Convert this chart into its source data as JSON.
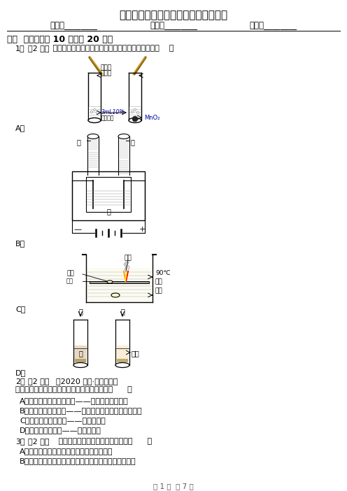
{
  "title": "内蒙古八年级上学期化学期中考试试卷",
  "name_label": "姓名：________",
  "class_label": "班级：________",
  "score_label": "成绩：________",
  "section1": "一、  单选题（共 10 题；共 20 分）",
  "q1_num": "1．",
  "q1_score": "（2 分）",
  "q1_text": " 下列问题的研究中，未利用对比实验思想方法的是（    ）",
  "a_label": "A．",
  "b_label": "B．",
  "c_label": "C．",
  "d_label": "D．",
  "label_daihuo": "带火星",
  "label_mutiao": "的木条",
  "label_3ml": "3mL10%",
  "label_shuangyang": "的双氧水",
  "label_mno2": "MnO₂",
  "label_jia": "甲",
  "label_yi": "乙",
  "label_shui_b": "水",
  "label_minus": "—",
  "label_plus": "+",
  "label_hong_lin": "红磷",
  "label_bai_lin": "白磷",
  "label_tong_pian": "铜片",
  "label_90c": "90℃",
  "label_reshui": "热水",
  "label_bai_lin2": "白磷",
  "label_iodine1": "碘",
  "label_iodine2": "碘",
  "label_water_d": "水",
  "label_gasoline": "汽油",
  "q2_num": "2．",
  "q2_score": "（2 分）",
  "q2_paren": "（2020 九下·河西月考）",
  "q2_text": "下列物质的用途与其依据的性质不相符合的是（      ）",
  "q2_A": "A．一氧化碳用于冶金工业——一氧化碳能够燃烧",
  "q2_B": "B．干冰用于人工降雨——干冰易升华同时吸收大量的热",
  "q2_C": "C．金刚石用于裁玻璃——金刚石很硬",
  "q2_D": "D．石墨用于制电极——石墨能导电",
  "q3_num": "3．",
  "q3_score": "（2 分）",
  "q3_text": " 下列有关氧气的叙述中，正确的是（      ）",
  "q3_A": "A．呼出气体中氧气含量比空气中氧气含量小",
  "q3_B": "B．空气中氧气含量的测定实验中，可以将红磷换成木炭",
  "page_footer": "第 1 页  共 7 页",
  "bg_color": "#ffffff",
  "text_color": "#000000",
  "mno2_color": "#0000AA"
}
